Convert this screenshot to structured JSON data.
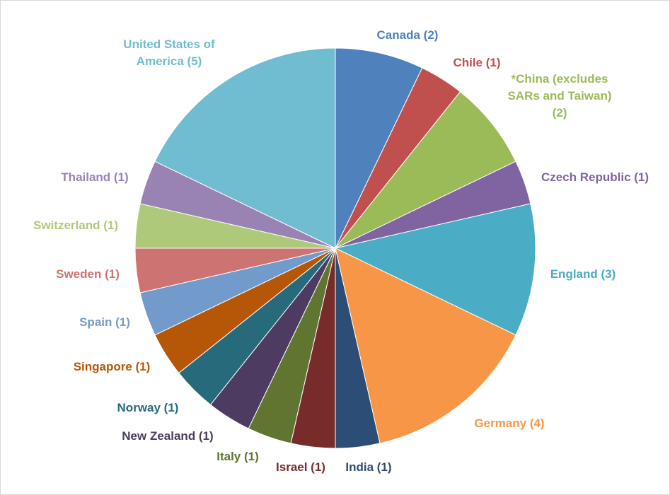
{
  "chart_data": {
    "type": "pie",
    "title": "",
    "start": "12 o'clock",
    "direction": "clockwise",
    "slices": [
      {
        "label": "Canada (2)",
        "value": 2,
        "color": "#4f81bd"
      },
      {
        "label": "Chile (1)",
        "value": 1,
        "color": "#c0504d"
      },
      {
        "label": "*China (excludes SARs and Taiwan) (2)",
        "label_lines": [
          "*China (excludes",
          "SARs and Taiwan)",
          "(2)"
        ],
        "value": 2,
        "color": "#9bbb59"
      },
      {
        "label": "Czech Republic (1)",
        "value": 1,
        "color": "#8064a2"
      },
      {
        "label": "England (3)",
        "value": 3,
        "color": "#4bacc6"
      },
      {
        "label": "Germany (4)",
        "value": 4,
        "color": "#f79646"
      },
      {
        "label": "India (1)",
        "value": 1,
        "color": "#2c4d75"
      },
      {
        "label": "Israel (1)",
        "value": 1,
        "color": "#772c2a"
      },
      {
        "label": "Italy (1)",
        "value": 1,
        "color": "#5f7530"
      },
      {
        "label": "New Zealand (1)",
        "value": 1,
        "color": "#4d3b62"
      },
      {
        "label": "Norway (1)",
        "value": 1,
        "color": "#276a7c"
      },
      {
        "label": "Singapore (1)",
        "value": 1,
        "color": "#b65708"
      },
      {
        "label": "Spain (1)",
        "value": 1,
        "color": "#729aca"
      },
      {
        "label": "Sweden (1)",
        "value": 1,
        "color": "#cd7371"
      },
      {
        "label": "Switzerland (1)",
        "value": 1,
        "color": "#afc97a"
      },
      {
        "label": "Thailand (1)",
        "value": 1,
        "color": "#9983b5"
      },
      {
        "label": "United States of America (5)",
        "label_lines": [
          "United States of",
          "America (5)"
        ],
        "value": 5,
        "color": "#70bcd1"
      }
    ]
  }
}
